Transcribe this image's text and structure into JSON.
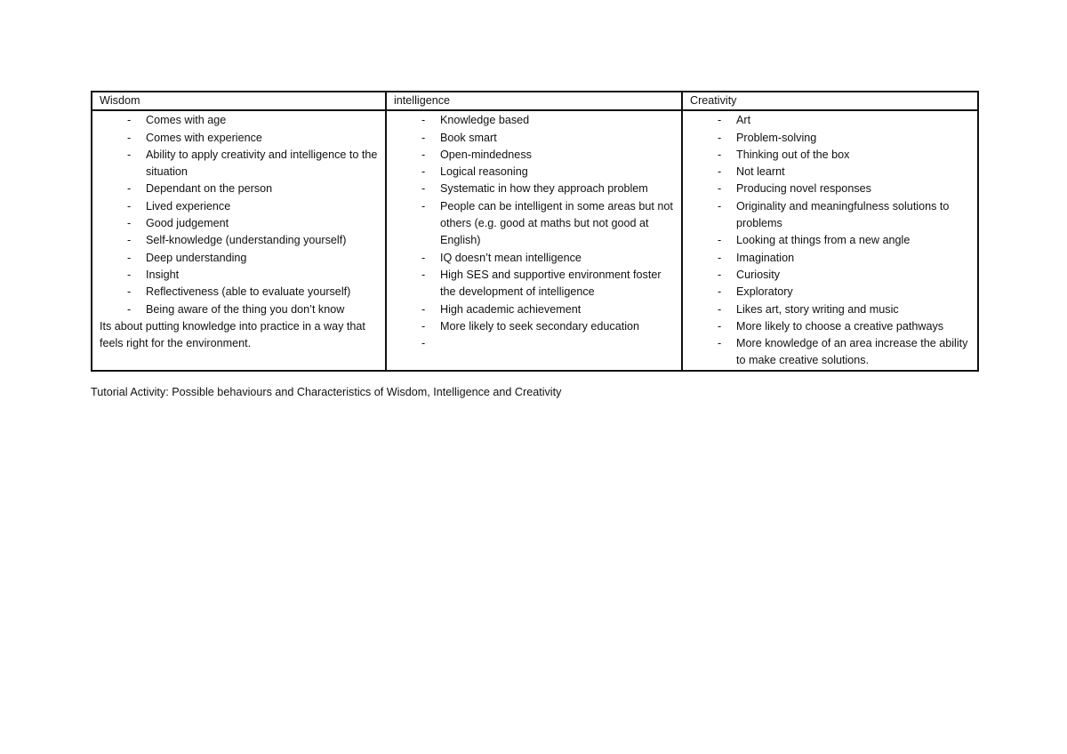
{
  "table": {
    "columns": [
      {
        "header": "Wisdom",
        "items": [
          "Comes with age",
          "Comes with experience",
          "Ability to apply creativity and intelligence to the situation",
          "Dependant on the person",
          "Lived experience",
          "Good judgement",
          "Self-knowledge (understanding yourself)",
          "Deep understanding",
          "Insight",
          "Reflectiveness (able to evaluate yourself)",
          "Being aware of the thing you don’t know"
        ],
        "note": "Its about putting knowledge into practice in a way that feels right for the environment."
      },
      {
        "header": "intelligence",
        "items": [
          "Knowledge based",
          "Book smart",
          "Open-mindedness",
          "Logical reasoning",
          "Systematic in how they approach problem",
          "People can be intelligent in some areas but not others (e.g. good at maths but not good at English)",
          "IQ doesn’t mean intelligence",
          "High SES and supportive environment foster the development of intelligence",
          "High academic achievement",
          "More likely to seek secondary education",
          ""
        ]
      },
      {
        "header": "Creativity",
        "items": [
          "Art",
          "Problem-solving",
          "Thinking out of the box",
          "Not learnt",
          "Producing novel responses",
          "Originality and meaningfulness solutions to problems",
          "Looking at things from a new angle",
          "Imagination",
          "Curiosity",
          "Exploratory",
          "Likes art, story writing and music",
          "More likely to choose a creative pathways",
          "More knowledge of an area increase the ability to make creative solutions."
        ]
      }
    ],
    "bullet": "-"
  },
  "caption": "Tutorial Activity: Possible behaviours and Characteristics of Wisdom, Intelligence and Creativity"
}
